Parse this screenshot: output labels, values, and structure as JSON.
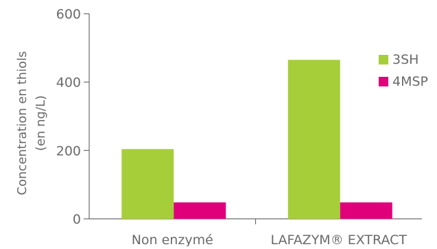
{
  "chart_data": {
    "type": "bar",
    "title": "",
    "xlabel": "",
    "ylabel": "Concentration en thiols\n(en ng/L)",
    "ylabel_lines": [
      "Concentration en thiols",
      "(en ng/L)"
    ],
    "categories": [
      "Non enzymé",
      "LAFAZYM® EXTRACT"
    ],
    "series": [
      {
        "name": "3SH",
        "color": "#a6ce39",
        "values": [
          204,
          465
        ]
      },
      {
        "name": "4MSP",
        "color": "#e0007a",
        "values": [
          48,
          48
        ]
      }
    ],
    "yticks": [
      0,
      200,
      400,
      600
    ],
    "ylim": [
      0,
      600
    ],
    "grid": false,
    "legend_position": "right"
  }
}
